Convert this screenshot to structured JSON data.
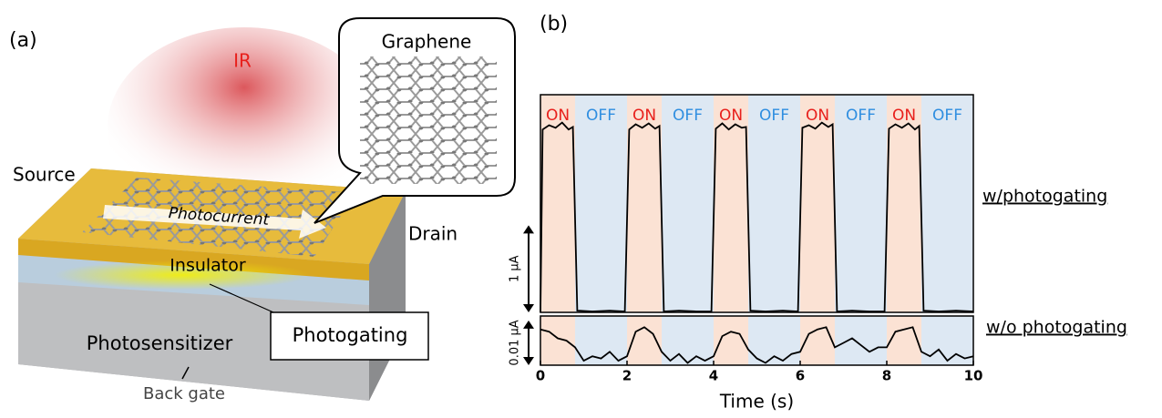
{
  "panel_a": {
    "label": "(a)",
    "ir": "IR",
    "graphene": "Graphene",
    "source": "Source",
    "photocurrent": "Photocurrent",
    "drain": "Drain",
    "insulator": "Insulator",
    "photosensitizer": "Photosensitizer",
    "photogating": "Photogating",
    "back_gate": "Back gate"
  },
  "chart_data": {
    "type": "line",
    "panel_label": "(b)",
    "xlabel": "Time (s)",
    "xlim": [
      0,
      10
    ],
    "xticks": [
      0,
      2,
      4,
      6,
      8,
      10
    ],
    "periods": [
      {
        "label": "ON",
        "start": 0,
        "end": 0.8,
        "fill": "#fbe2d4",
        "text_color": "#e8201c"
      },
      {
        "label": "OFF",
        "start": 0.8,
        "end": 2,
        "fill": "#dde8f3",
        "text_color": "#2f8ee0"
      },
      {
        "label": "ON",
        "start": 2,
        "end": 2.8,
        "fill": "#fbe2d4",
        "text_color": "#e8201c"
      },
      {
        "label": "OFF",
        "start": 2.8,
        "end": 4,
        "fill": "#dde8f3",
        "text_color": "#2f8ee0"
      },
      {
        "label": "ON",
        "start": 4,
        "end": 4.8,
        "fill": "#fbe2d4",
        "text_color": "#e8201c"
      },
      {
        "label": "OFF",
        "start": 4.8,
        "end": 6,
        "fill": "#dde8f3",
        "text_color": "#2f8ee0"
      },
      {
        "label": "ON",
        "start": 6,
        "end": 6.8,
        "fill": "#fbe2d4",
        "text_color": "#e8201c"
      },
      {
        "label": "OFF",
        "start": 6.8,
        "end": 8,
        "fill": "#dde8f3",
        "text_color": "#2f8ee0"
      },
      {
        "label": "ON",
        "start": 8,
        "end": 8.8,
        "fill": "#fbe2d4",
        "text_color": "#e8201c"
      },
      {
        "label": "OFF",
        "start": 8.8,
        "end": 10,
        "fill": "#dde8f3",
        "text_color": "#2f8ee0"
      }
    ],
    "series": [
      {
        "name": "w/photogating",
        "color": "#000000",
        "ylim": [
          0,
          2.5
        ],
        "scale_bar": {
          "value": 1,
          "label": "1 μA"
        },
        "x": [
          0,
          0.05,
          0.2,
          0.35,
          0.5,
          0.65,
          0.75,
          0.85,
          1.2,
          1.6,
          1.95,
          2.05,
          2.2,
          2.35,
          2.5,
          2.65,
          2.75,
          2.85,
          3.2,
          3.6,
          3.95,
          4.05,
          4.2,
          4.35,
          4.5,
          4.65,
          4.75,
          4.85,
          5.2,
          5.6,
          5.95,
          6.05,
          6.2,
          6.35,
          6.5,
          6.65,
          6.75,
          6.85,
          7.2,
          7.6,
          7.95,
          8.05,
          8.2,
          8.35,
          8.5,
          8.65,
          8.75,
          8.85,
          9.2,
          9.6,
          10
        ],
        "values": [
          0,
          2.1,
          2.15,
          2.12,
          2.18,
          2.1,
          2.13,
          0.02,
          0.01,
          0.02,
          0.01,
          2.1,
          2.16,
          2.12,
          2.17,
          2.11,
          2.14,
          0.01,
          0.02,
          0.01,
          0.01,
          2.11,
          2.17,
          2.1,
          2.16,
          2.12,
          2.13,
          0.02,
          0.01,
          0.02,
          0.01,
          2.12,
          2.15,
          2.11,
          2.18,
          2.13,
          2.16,
          0.01,
          0.02,
          0.01,
          0.01,
          2.11,
          2.16,
          2.12,
          2.17,
          2.1,
          2.14,
          0.02,
          0.01,
          0.02,
          0.01
        ]
      },
      {
        "name": "w/o photogating",
        "color": "#000000",
        "ylim": [
          0,
          0.011
        ],
        "scale_bar": {
          "value": 0.01,
          "label": "0.01 μA"
        },
        "x": [
          0,
          0.2,
          0.4,
          0.6,
          0.8,
          1,
          1.2,
          1.4,
          1.6,
          1.8,
          2,
          2.2,
          2.4,
          2.6,
          2.8,
          3,
          3.2,
          3.4,
          3.6,
          3.8,
          4,
          4.2,
          4.4,
          4.6,
          4.8,
          5,
          5.2,
          5.4,
          5.6,
          5.8,
          6,
          6.2,
          6.4,
          6.6,
          6.8,
          7,
          7.2,
          7.4,
          7.6,
          7.8,
          8,
          8.2,
          8.4,
          8.6,
          8.8,
          9,
          9.2,
          9.4,
          9.6,
          9.8,
          10
        ],
        "values": [
          0.008,
          0.0075,
          0.006,
          0.0055,
          0.004,
          0.001,
          0.002,
          0.0015,
          0.003,
          0.001,
          0.002,
          0.0075,
          0.0085,
          0.007,
          0.003,
          0.001,
          0.0025,
          0.0005,
          0.002,
          0.001,
          0.002,
          0.0065,
          0.0075,
          0.007,
          0.0035,
          0.0015,
          0.0005,
          0.002,
          0.001,
          0.0025,
          0.003,
          0.007,
          0.008,
          0.0085,
          0.004,
          0.005,
          0.006,
          0.0045,
          0.003,
          0.004,
          0.004,
          0.0075,
          0.008,
          0.0085,
          0.003,
          0.002,
          0.0035,
          0.001,
          0.0025,
          0.0015,
          0.002
        ]
      }
    ]
  }
}
